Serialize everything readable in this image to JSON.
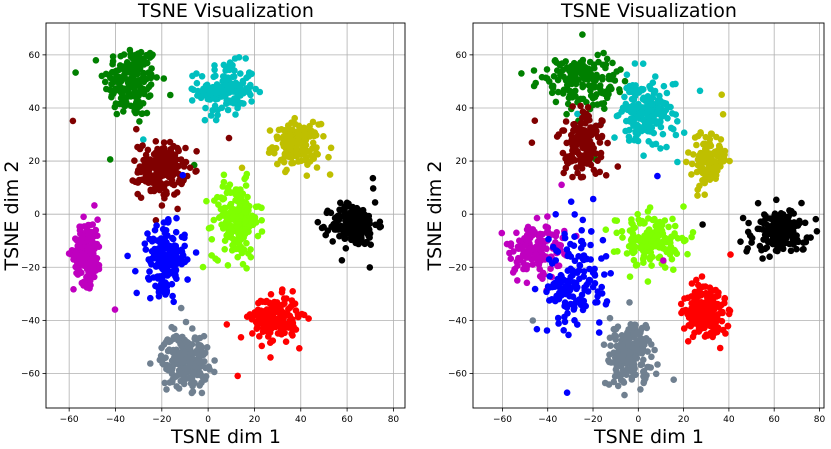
{
  "chart_data": [
    {
      "type": "scatter",
      "title": "TSNE Visualization",
      "xlabel": "TSNE dim 1",
      "ylabel": "TSNE dim 2",
      "xlim": [
        -70,
        85
      ],
      "ylim": [
        -73,
        72
      ],
      "xticks": [
        -60,
        -40,
        -20,
        0,
        20,
        40,
        60,
        80
      ],
      "yticks": [
        -60,
        -40,
        -20,
        0,
        20,
        40,
        60
      ],
      "xtick_labels": [
        "−60",
        "−40",
        "−20",
        "0",
        "20",
        "40",
        "60",
        "80"
      ],
      "ytick_labels": [
        "−60",
        "−40",
        "−20",
        "0",
        "20",
        "40",
        "60"
      ],
      "grid": true,
      "series": [
        {
          "name": "green",
          "color": "#008000",
          "center": [
            -33,
            50
          ],
          "spread": [
            6,
            7
          ],
          "count": 180
        },
        {
          "name": "cyan",
          "color": "#00bfbf",
          "center": [
            8,
            47
          ],
          "spread": [
            6,
            5
          ],
          "count": 150
        },
        {
          "name": "olive",
          "color": "#bfbf00",
          "center": [
            38,
            26
          ],
          "spread": [
            5,
            4
          ],
          "count": 160
        },
        {
          "name": "maroon",
          "color": "#800000",
          "center": [
            -20,
            17
          ],
          "spread": [
            5,
            5
          ],
          "count": 190
        },
        {
          "name": "lime",
          "color": "#7fff00",
          "center": [
            12,
            -2
          ],
          "spread": [
            5,
            7
          ],
          "count": 190
        },
        {
          "name": "black",
          "color": "#000000",
          "center": [
            63,
            -4
          ],
          "spread": [
            5,
            4
          ],
          "count": 170
        },
        {
          "name": "magenta",
          "color": "#bf00bf",
          "center": [
            -52,
            -14
          ],
          "spread": [
            3,
            6
          ],
          "count": 150
        },
        {
          "name": "blue",
          "color": "#0000ff",
          "center": [
            -18,
            -17
          ],
          "spread": [
            4,
            6
          ],
          "count": 180
        },
        {
          "name": "red",
          "color": "#ff0000",
          "center": [
            29,
            -39
          ],
          "spread": [
            5,
            4
          ],
          "count": 190
        },
        {
          "name": "slate-gray",
          "color": "#708090",
          "center": [
            -10,
            -55
          ],
          "spread": [
            5,
            5
          ],
          "count": 210
        }
      ]
    },
    {
      "type": "scatter",
      "title": "TSNE Visualization",
      "xlabel": "TSNE dim 1",
      "ylabel": "TSNE dim 2",
      "xlim": [
        -73,
        82
      ],
      "ylim": [
        -73,
        72
      ],
      "xticks": [
        -60,
        -40,
        -20,
        0,
        20,
        40,
        60,
        80
      ],
      "yticks": [
        -60,
        -40,
        -20,
        0,
        20,
        40,
        60
      ],
      "xtick_labels": [
        "−60",
        "−40",
        "−20",
        "0",
        "20",
        "40",
        "60",
        "80"
      ],
      "ytick_labels": [
        "−60",
        "−40",
        "−20",
        "0",
        "20",
        "40",
        "60"
      ],
      "grid": true,
      "series": [
        {
          "name": "green",
          "color": "#008000",
          "center": [
            -26,
            50
          ],
          "spread": [
            8,
            5
          ],
          "count": 160
        },
        {
          "name": "cyan",
          "color": "#00bfbf",
          "center": [
            3,
            38
          ],
          "spread": [
            6,
            6
          ],
          "count": 190
        },
        {
          "name": "olive",
          "color": "#bfbf00",
          "center": [
            31,
            21
          ],
          "spread": [
            4,
            5
          ],
          "count": 130
        },
        {
          "name": "maroon",
          "color": "#800000",
          "center": [
            -25,
            26
          ],
          "spread": [
            5,
            6
          ],
          "count": 160
        },
        {
          "name": "lime",
          "color": "#7fff00",
          "center": [
            5,
            -10
          ],
          "spread": [
            7,
            5
          ],
          "count": 160
        },
        {
          "name": "black",
          "color": "#000000",
          "center": [
            63,
            -7
          ],
          "spread": [
            6,
            4
          ],
          "count": 170
        },
        {
          "name": "magenta",
          "color": "#bf00bf",
          "center": [
            -45,
            -13
          ],
          "spread": [
            6,
            5
          ],
          "count": 140
        },
        {
          "name": "blue",
          "color": "#0000ff",
          "center": [
            -28,
            -25
          ],
          "spread": [
            7,
            9
          ],
          "count": 150
        },
        {
          "name": "red",
          "color": "#ff0000",
          "center": [
            30,
            -37
          ],
          "spread": [
            5,
            5
          ],
          "count": 180
        },
        {
          "name": "slate-gray",
          "color": "#708090",
          "center": [
            -4,
            -53
          ],
          "spread": [
            5,
            6
          ],
          "count": 200
        }
      ]
    }
  ]
}
